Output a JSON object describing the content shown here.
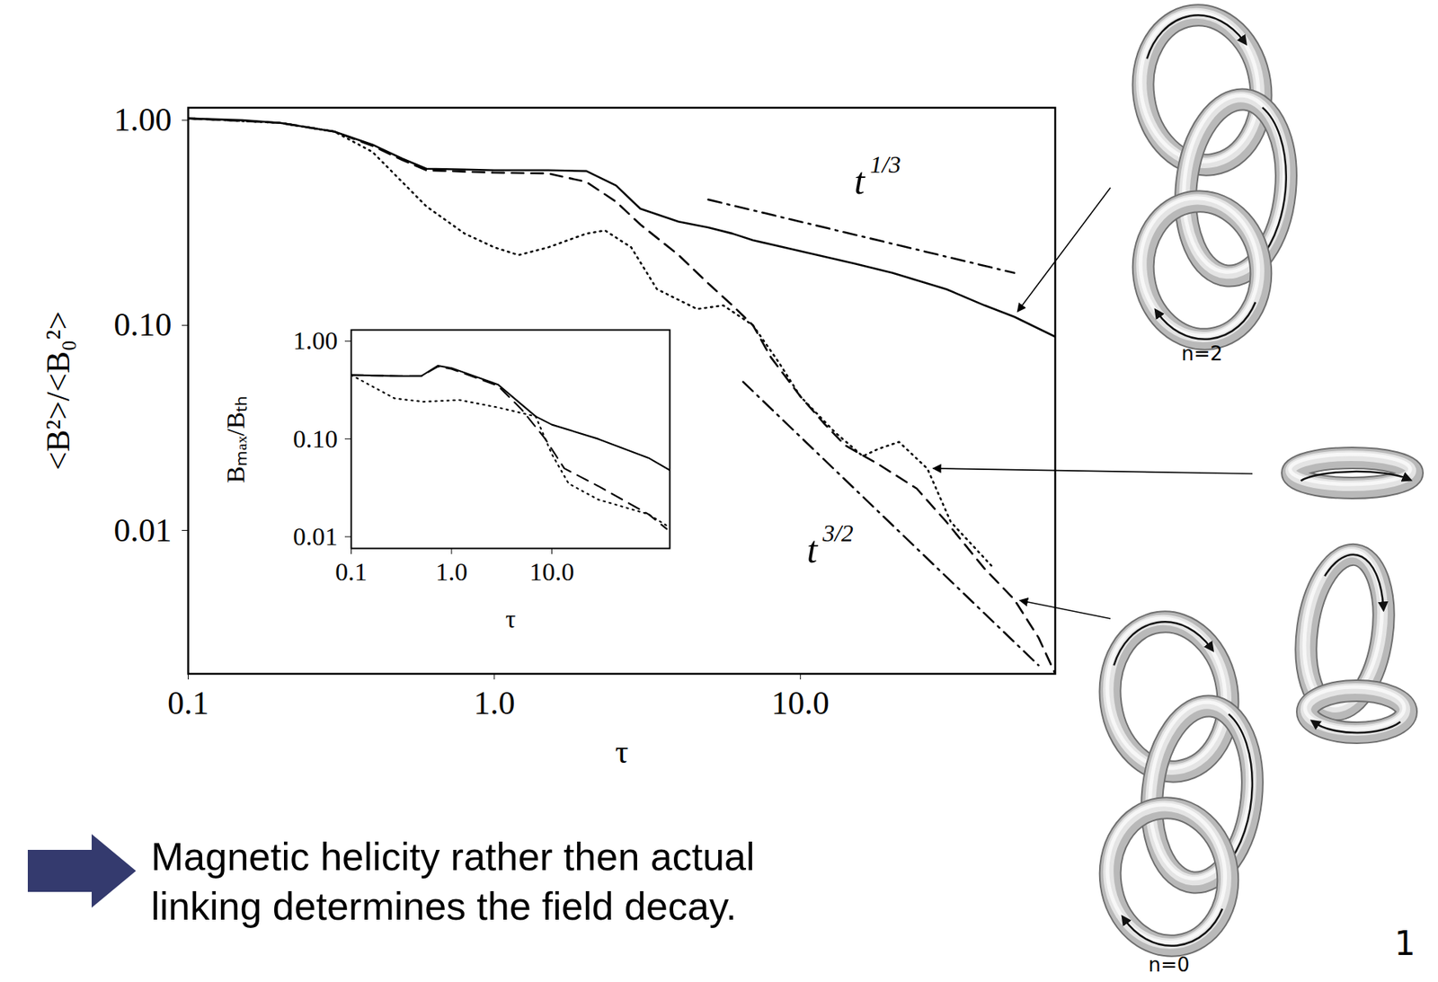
{
  "chart_data": [
    {
      "type": "line",
      "x_label": "τ",
      "y_label": "<B²>/<B₀²>",
      "log": true,
      "xlim": [
        0.1,
        68
      ],
      "ylim": [
        0.002,
        1.15
      ],
      "xticks": [
        0.1,
        {
          "value": 1,
          "label": "1.0"
        },
        {
          "value": 10,
          "label": "10.0"
        }
      ],
      "yticks": [
        {
          "value": 1,
          "label": "1.00"
        },
        {
          "value": 0.1,
          "label": "0.10"
        },
        0.01
      ],
      "series": [
        {
          "color": "#000000",
          "line_style": "solid",
          "x": [
            0.1,
            0.15,
            0.2,
            0.3,
            0.4,
            0.5,
            0.6,
            0.8,
            1,
            1.5,
            2,
            2.5,
            3,
            4,
            5,
            6,
            7,
            10,
            15,
            20,
            30,
            40,
            50,
            68
          ],
          "values": [
            1.02,
            1.0,
            0.97,
            0.88,
            0.76,
            0.65,
            0.58,
            0.575,
            0.57,
            0.57,
            0.565,
            0.48,
            0.37,
            0.32,
            0.3,
            0.28,
            0.26,
            0.23,
            0.2,
            0.18,
            0.15,
            0.125,
            0.11,
            0.088
          ]
        },
        {
          "color": "#000000",
          "line_style": "dashed",
          "x": [
            0.1,
            0.2,
            0.3,
            0.4,
            0.5,
            0.6,
            1,
            1.5,
            2,
            2.5,
            3,
            4,
            5,
            6,
            7,
            8,
            10,
            12,
            14,
            18,
            24,
            30,
            40,
            50,
            60,
            68
          ],
          "values": [
            1.02,
            0.97,
            0.88,
            0.75,
            0.64,
            0.57,
            0.555,
            0.55,
            0.5,
            0.4,
            0.31,
            0.22,
            0.16,
            0.125,
            0.1,
            0.07,
            0.045,
            0.033,
            0.026,
            0.021,
            0.016,
            0.011,
            0.0065,
            0.0046,
            0.003,
            0.002
          ]
        },
        {
          "color": "#000000",
          "line_style": "dotted",
          "x": [
            0.1,
            0.2,
            0.3,
            0.4,
            0.5,
            0.6,
            0.8,
            1,
            1.2,
            1.5,
            2,
            2.3,
            2.8,
            3.4,
            4.6,
            5.6,
            7,
            8.5,
            10,
            13,
            16,
            18,
            21,
            26,
            31,
            43
          ],
          "values": [
            1.02,
            0.97,
            0.88,
            0.7,
            0.5,
            0.38,
            0.28,
            0.24,
            0.22,
            0.24,
            0.28,
            0.29,
            0.24,
            0.15,
            0.12,
            0.125,
            0.1,
            0.066,
            0.045,
            0.03,
            0.023,
            0.025,
            0.027,
            0.02,
            0.011,
            0.0065
          ]
        },
        {
          "color": "#000000",
          "line_style": "dashdot",
          "x": [
            5,
            50
          ],
          "values": [
            0.41,
            0.18
          ]
        },
        {
          "color": "#000000",
          "line_style": "dashdot",
          "x": [
            6.5,
            60
          ],
          "values": [
            0.053,
            0.0022
          ]
        }
      ],
      "annotations": [
        {
          "text": "t",
          "superscript": "1/3",
          "x": 15,
          "y": 0.5
        },
        {
          "text": "t",
          "superscript": "3/2",
          "x": 10.5,
          "y": 0.008
        }
      ]
    },
    {
      "type": "line",
      "x_label": "τ",
      "y_label": "Bₘₐₓ/Bₜₕ",
      "log": true,
      "xlim": [
        0.1,
        150
      ],
      "ylim": [
        0.0076,
        1.3
      ],
      "xticks": [
        0.1,
        {
          "value": 1,
          "label": "1.0"
        },
        {
          "value": 10,
          "label": "10.0"
        }
      ],
      "yticks": [
        {
          "value": 1,
          "label": "1.00"
        },
        {
          "value": 0.1,
          "label": "0.10"
        },
        0.01
      ],
      "series": [
        {
          "color": "#000000",
          "line_style": "solid",
          "x": [
            0.1,
            0.3,
            0.5,
            0.73,
            1,
            2.9,
            6.9,
            10,
            29,
            92,
            150
          ],
          "values": [
            0.45,
            0.44,
            0.44,
            0.56,
            0.53,
            0.36,
            0.17,
            0.14,
            0.1,
            0.064,
            0.048
          ]
        },
        {
          "color": "#000000",
          "line_style": "dashed",
          "x": [
            0.1,
            0.3,
            0.5,
            0.73,
            1,
            2.9,
            5,
            8.6,
            13.3,
            29,
            92,
            140
          ],
          "values": [
            0.45,
            0.44,
            0.44,
            0.55,
            0.52,
            0.35,
            0.2,
            0.1,
            0.05,
            0.033,
            0.017,
            0.012
          ]
        },
        {
          "color": "#000000",
          "line_style": "dotted",
          "x": [
            0.1,
            0.27,
            0.52,
            1.2,
            2.9,
            6.9,
            10,
            14.7,
            29,
            92,
            140
          ],
          "values": [
            0.45,
            0.26,
            0.24,
            0.25,
            0.21,
            0.17,
            0.07,
            0.035,
            0.024,
            0.017,
            0.013
          ]
        }
      ]
    }
  ],
  "slide": {
    "conclusion": [
      "Magnetic helicity rather then actual",
      "linking determines the field decay."
    ],
    "diagram_labels": [
      "n=2",
      "n=0"
    ],
    "page_number": "1"
  }
}
